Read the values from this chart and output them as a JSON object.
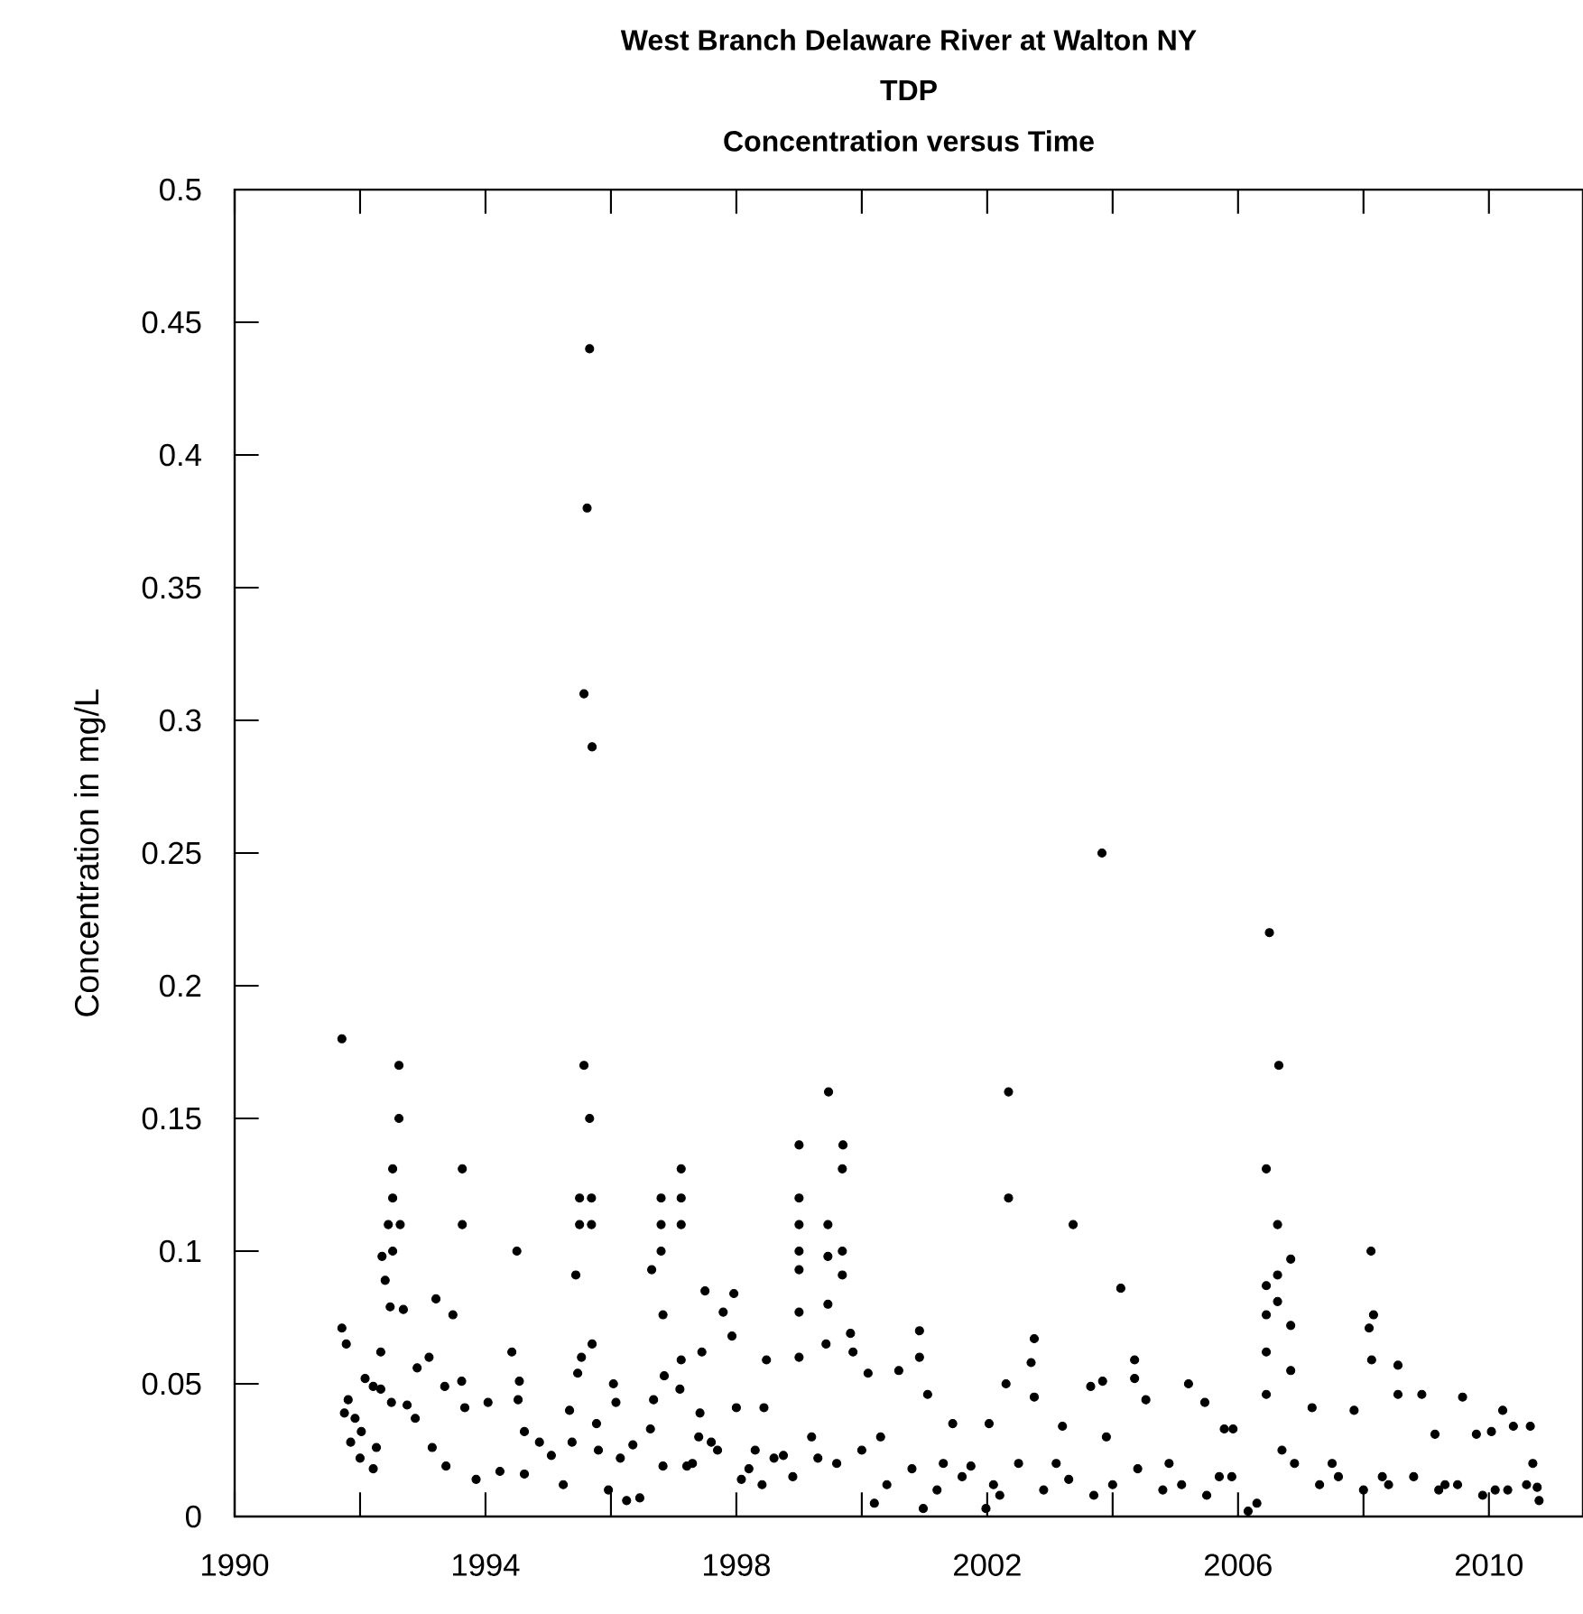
{
  "chart_data": {
    "type": "scatter",
    "title": "West Branch Delaware River at Walton NY",
    "subtitle": "TDP",
    "annotations": [
      "Concentration versus Time"
    ],
    "ylabel": "Concentration in mg/L",
    "marker": "circle",
    "grid": false,
    "legend": false,
    "xlim": [
      1990,
      2011.5
    ],
    "ylim": [
      0,
      0.5
    ],
    "xticks": [
      1990,
      {
        "value": 1992,
        "label": null
      },
      1994,
      {
        "value": 1996,
        "label": null
      },
      1998,
      {
        "value": 2000,
        "label": null
      },
      2002,
      {
        "value": 2004,
        "label": null
      },
      2006,
      {
        "value": 2008,
        "label": null
      },
      2010
    ],
    "yticks": [
      0,
      0.05,
      0.1,
      0.15,
      0.2,
      0.25,
      0.3,
      0.35,
      0.4,
      0.45,
      0.5
    ],
    "series": [
      {
        "color": "#000000",
        "x": [
          1991.71,
          1991.71,
          1991.78,
          1991.81,
          1991.75,
          1991.92,
          1992.02,
          1991.85,
          1992.0,
          1992.21,
          1992.08,
          1992.21,
          1992.33,
          1992.33,
          1992.35,
          1992.4,
          1992.48,
          1992.52,
          1992.52,
          1992.52,
          1992.45,
          1992.64,
          1992.69,
          1992.62,
          1992.62,
          1992.26,
          1992.5,
          1992.75,
          1992.91,
          1993.1,
          1992.88,
          1993.15,
          1993.21,
          1993.48,
          1993.35,
          1993.62,
          1993.63,
          1993.63,
          1993.37,
          1993.67,
          1993.85,
          1994.04,
          1994.23,
          1994.5,
          1994.42,
          1994.54,
          1994.52,
          1994.62,
          1994.62,
          1994.86,
          1995.05,
          1995.24,
          1995.38,
          1995.44,
          1995.34,
          1995.47,
          1995.5,
          1995.5,
          1995.69,
          1995.69,
          1995.7,
          1995.53,
          1995.57,
          1995.66,
          1995.66,
          1995.62,
          1995.57,
          1995.7,
          1995.77,
          1995.8,
          1996.04,
          1996.08,
          1995.96,
          1996.15,
          1996.25,
          1996.46,
          1996.35,
          1996.63,
          1996.68,
          1996.65,
          1996.8,
          1996.8,
          1996.8,
          1996.83,
          1996.85,
          1996.83,
          1997.12,
          1997.12,
          1997.12,
          1997.12,
          1997.1,
          1997.21,
          1997.45,
          1997.5,
          1997.42,
          1997.6,
          1997.79,
          1997.96,
          1997.93,
          1998.0,
          1998.08,
          1998.48,
          1998.44,
          1998.41,
          1998.75,
          1999.0,
          1999.0,
          1999.0,
          1999.0,
          1999.0,
          1999.0,
          1999.0,
          1999.69,
          1999.69,
          1999.69,
          1999.46,
          1999.46,
          1999.46,
          1999.43,
          1999.47,
          1999.7,
          1999.82,
          1999.86,
          2000.1,
          2000.59,
          2000.2,
          2000.92,
          2000.92,
          2001.05,
          2000.98,
          2001.45,
          2001.74,
          2002.03,
          2001.98,
          2002.3,
          2002.34,
          2002.34,
          2002.75,
          2002.7,
          2002.75,
          2003.2,
          2003.37,
          2003.65,
          2003.84,
          2003.83,
          2004.13,
          2004.35,
          2004.35,
          2004.53,
          2005.21,
          2005.47,
          2005.78,
          2005.92,
          2006.16,
          2006.45,
          2006.45,
          2006.45,
          2006.45,
          2006.45,
          2006.5,
          2006.63,
          2006.63,
          2006.63,
          2006.65,
          2006.84,
          2006.84,
          2006.84,
          2007.18,
          2007.85,
          2008.12,
          2008.16,
          2008.09,
          2008.13,
          2008.55,
          2008.55,
          2008.93,
          2009.14,
          2009.58,
          2009.8,
          2010.04,
          2010.22,
          2010.39,
          2010.66,
          2010.77,
          1997.3,
          1997.7,
          1998.2,
          1998.6,
          1998.9,
          1999.2,
          1999.6,
          2000.0,
          2000.4,
          2000.8,
          2001.2,
          2001.6,
          2002.1,
          2002.5,
          2002.9,
          2003.3,
          2003.7,
          2004.0,
          2004.4,
          2004.8,
          2005.1,
          2005.5,
          2005.9,
          2006.3,
          2006.9,
          2007.3,
          2007.6,
          2008.0,
          2008.4,
          2008.8,
          2009.2,
          2009.5,
          2009.9,
          2010.3,
          2010.6,
          2010.8,
          1997.4,
          1998.3,
          1999.3,
          2000.3,
          2001.3,
          2002.2,
          2003.1,
          2003.9,
          2004.9,
          2005.7,
          2006.7,
          2007.5,
          2008.3,
          2009.3,
          2010.1,
          2010.7
        ],
        "values": [
          0.18,
          0.071,
          0.065,
          0.044,
          0.039,
          0.037,
          0.032,
          0.028,
          0.022,
          0.018,
          0.052,
          0.049,
          0.048,
          0.062,
          0.098,
          0.089,
          0.079,
          0.1,
          0.12,
          0.131,
          0.11,
          0.11,
          0.078,
          0.17,
          0.15,
          0.026,
          0.043,
          0.042,
          0.056,
          0.06,
          0.037,
          0.026,
          0.082,
          0.076,
          0.049,
          0.051,
          0.131,
          0.11,
          0.019,
          0.041,
          0.014,
          0.043,
          0.017,
          0.1,
          0.062,
          0.051,
          0.044,
          0.032,
          0.016,
          0.028,
          0.023,
          0.012,
          0.028,
          0.091,
          0.04,
          0.054,
          0.12,
          0.11,
          0.12,
          0.11,
          0.065,
          0.06,
          0.17,
          0.15,
          0.44,
          0.38,
          0.31,
          0.29,
          0.035,
          0.025,
          0.05,
          0.043,
          0.01,
          0.022,
          0.006,
          0.007,
          0.027,
          0.033,
          0.044,
          0.093,
          0.12,
          0.11,
          0.1,
          0.076,
          0.053,
          0.019,
          0.131,
          0.12,
          0.11,
          0.059,
          0.048,
          0.019,
          0.062,
          0.085,
          0.039,
          0.028,
          0.077,
          0.084,
          0.068,
          0.041,
          0.014,
          0.059,
          0.041,
          0.012,
          0.023,
          0.14,
          0.12,
          0.11,
          0.1,
          0.093,
          0.077,
          0.06,
          0.131,
          0.1,
          0.091,
          0.11,
          0.098,
          0.08,
          0.065,
          0.16,
          0.14,
          0.069,
          0.062,
          0.054,
          0.055,
          0.005,
          0.07,
          0.06,
          0.046,
          0.003,
          0.035,
          0.019,
          0.035,
          0.003,
          0.05,
          0.16,
          0.12,
          0.067,
          0.058,
          0.045,
          0.034,
          0.11,
          0.049,
          0.051,
          0.25,
          0.086,
          0.059,
          0.052,
          0.044,
          0.05,
          0.043,
          0.033,
          0.033,
          0.002,
          0.131,
          0.087,
          0.076,
          0.062,
          0.046,
          0.22,
          0.11,
          0.091,
          0.081,
          0.17,
          0.097,
          0.072,
          0.055,
          0.041,
          0.04,
          0.1,
          0.076,
          0.071,
          0.059,
          0.057,
          0.046,
          0.046,
          0.031,
          0.045,
          0.031,
          0.032,
          0.04,
          0.034,
          0.034,
          0.011,
          0.02,
          0.025,
          0.018,
          0.022,
          0.015,
          0.03,
          0.02,
          0.025,
          0.012,
          0.018,
          0.01,
          0.015,
          0.012,
          0.02,
          0.01,
          0.014,
          0.008,
          0.012,
          0.018,
          0.01,
          0.012,
          0.008,
          0.015,
          0.005,
          0.02,
          0.012,
          0.015,
          0.01,
          0.012,
          0.015,
          0.01,
          0.012,
          0.008,
          0.01,
          0.012,
          0.006,
          0.03,
          0.025,
          0.022,
          0.03,
          0.02,
          0.008,
          0.02,
          0.03,
          0.02,
          0.015,
          0.025,
          0.02,
          0.015,
          0.012,
          0.01,
          0.02
        ]
      }
    ]
  }
}
